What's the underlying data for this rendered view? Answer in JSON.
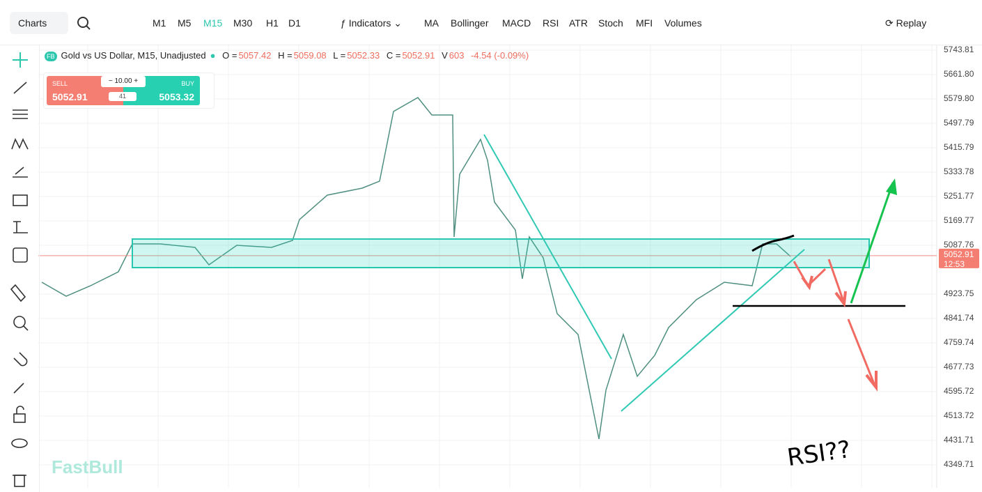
{
  "toolbar": {
    "chart_type": "Charts",
    "timeframes": [
      "M1",
      "M5",
      "M15",
      "M30",
      "H1",
      "D1"
    ],
    "active_timeframe": "M15",
    "indicators": "Indicators",
    "studies": [
      "MA",
      "Bollinger",
      "MACD",
      "RSI",
      "ATR",
      "Stoch",
      "MFI",
      "Volumes"
    ],
    "replay": "Replay"
  },
  "legend": {
    "logo": "FB",
    "symbol": "Gold vs US Dollar, M15, Unadjusted",
    "open_label": "O =",
    "open": "5057.42",
    "high_label": "H =",
    "high": "5059.08",
    "low_label": "L =",
    "low": "5052.33",
    "close_label": "C =",
    "close": "5052.91",
    "volume_label": "V",
    "volume": "603",
    "change": "-4.54 (-0.09%)"
  },
  "trade_panel": {
    "sell_label": "SELL",
    "sell_price": "5052.91",
    "buy_label": "BUY",
    "buy_price": "5053.32",
    "lot": "10.00",
    "spread": "41"
  },
  "watermark": "FastBull",
  "chart_data": {
    "type": "line",
    "color": "#4f8f80",
    "x": [
      5,
      40,
      75,
      115,
      135,
      175,
      225,
      245,
      285,
      335,
      365,
      375,
      415,
      465,
      490,
      510,
      545,
      565,
      595,
      597,
      605,
      635,
      645,
      655,
      685,
      695,
      705,
      725,
      745,
      775,
      805,
      815,
      840,
      860,
      885,
      905,
      945,
      985,
      1025,
      1040,
      1060,
      1080
    ],
    "values": [
      4963.6,
      4916.7,
      4951.9,
      4998.7,
      5092.4,
      5092.4,
      5080.7,
      5022.2,
      5087.8,
      5080.7,
      5104.2,
      5174.4,
      5256.5,
      5279.9,
      5303.3,
      5537.6,
      5584.5,
      5525.9,
      5525.9,
      5115.9,
      5326.7,
      5443.9,
      5373.6,
      5233.0,
      5139.3,
      4975.3,
      5115.9,
      5045.6,
      4858.1,
      4787.9,
      4436.4,
      4600.4,
      4787.9,
      4647.3,
      4717.6,
      4811.3,
      4905.0,
      4963.6,
      4951.9,
      5092.4,
      5092.4,
      5050.3
    ],
    "xlim": [
      0,
      1290
    ],
    "ylim": [
      4272.4,
      5760.2
    ],
    "yticks": [
      5743.81,
      {
        "value": 5661.8,
        "label": "5661.80"
      },
      {
        "value": 5579.8,
        "label": "5579.80"
      },
      5497.79,
      5415.79,
      5333.78,
      5251.77,
      5169.77,
      5087.76,
      4923.75,
      4841.74,
      4759.74,
      4677.73,
      4595.72,
      4513.72,
      4431.71,
      4349.71
    ],
    "current_price": {
      "value": 5052.91,
      "label": "5052.91"
    },
    "countdown": "12:53",
    "annotation": "RSI??"
  }
}
